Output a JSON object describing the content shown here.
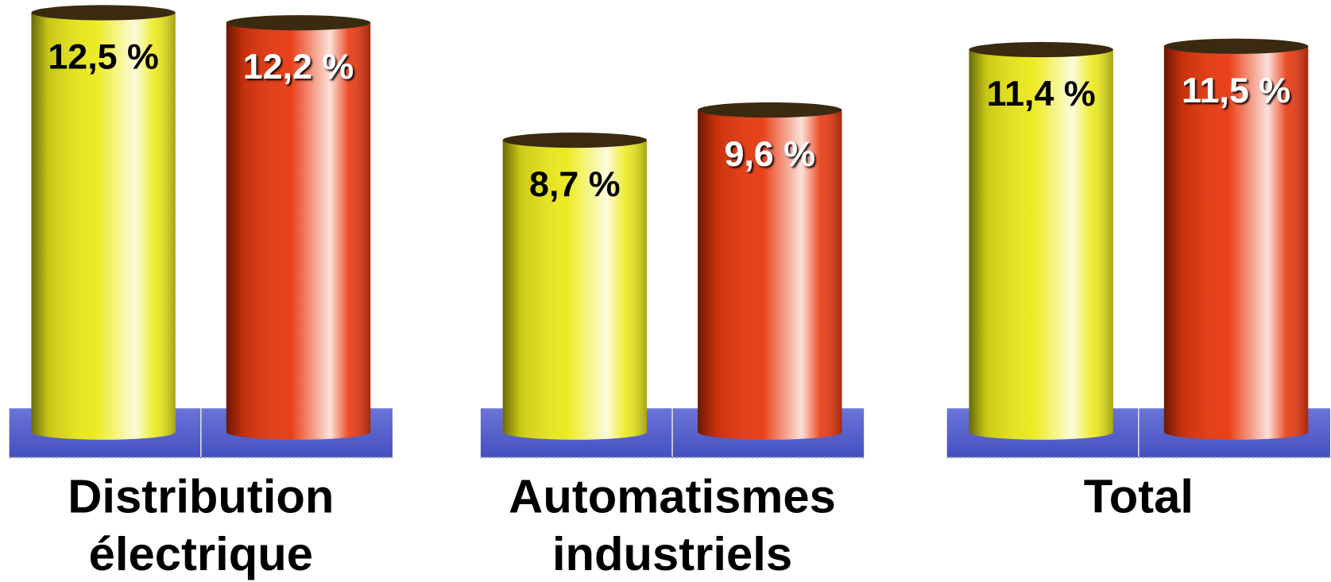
{
  "chart_data": {
    "type": "bar",
    "categories": [
      "Distribution électrique",
      "Automatismes industriels",
      "Total"
    ],
    "series": [
      {
        "color": "#ecea1a",
        "values": [
          12.5,
          8.7,
          11.4
        ],
        "value_labels": [
          "12,5 %",
          "8,7 %",
          "11,4 %"
        ]
      },
      {
        "color": "#e8380e",
        "values": [
          12.2,
          9.6,
          11.5
        ],
        "value_labels": [
          "12,2 %",
          "9,6 %",
          "11,5 %"
        ]
      }
    ]
  }
}
